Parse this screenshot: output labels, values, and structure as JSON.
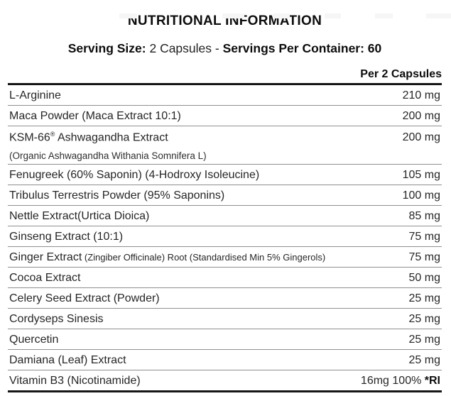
{
  "header": {
    "title": "NUTRITIONAL INFORMATION",
    "serving_bold_1": "Serving Size: ",
    "serving_regular": "2 Capsules - ",
    "serving_bold_2": "Servings Per Container: 60"
  },
  "table": {
    "column_header": "Per 2 Capsules",
    "rows": [
      {
        "name": "L-Arginine",
        "amount": "210 mg"
      },
      {
        "name": "Maca Powder (Maca Extract 10:1)",
        "amount": "200 mg"
      },
      {
        "name": "KSM-66",
        "sup": "®",
        "name_after": " Ashwagandha Extract",
        "subtext": "(Organic Ashwagandha Withania Somnifera L)",
        "amount": "200 mg"
      },
      {
        "name": "Fenugreek (60% Saponin) (4-Hodroxy Isoleucine)",
        "amount": "105 mg"
      },
      {
        "name": "Tribulus Terrestris Powder (95% Saponins)",
        "amount": "100 mg"
      },
      {
        "name": "Nettle Extract(Urtica Dioica)",
        "amount": "85 mg"
      },
      {
        "name": "Ginseng Extract (10:1)",
        "amount": "75 mg"
      },
      {
        "name": "Ginger Extract",
        "small": " (Zingiber Officinale) Root (Standardised Min 5% Gingerols)",
        "amount": "75 mg"
      },
      {
        "name": "Cocoa Extract",
        "amount": "50 mg"
      },
      {
        "name": "Celery Seed Extract (Powder)",
        "amount": "25 mg"
      },
      {
        "name": "Cordyseps Sinesis",
        "amount": "25 mg"
      },
      {
        "name": "Quercetin",
        "amount": "25 mg"
      },
      {
        "name": "Damiana (Leaf) Extract",
        "amount": "25 mg"
      },
      {
        "name": "Vitamin B3 (Nicotinamide)",
        "amount": "16mg 100% ",
        "amount_bold": "*RI"
      }
    ]
  },
  "colors": {
    "text": "#262626",
    "heading": "#0d0d0d",
    "rule": "#8f8f8f",
    "border": "#161616",
    "background": "#ffffff"
  }
}
